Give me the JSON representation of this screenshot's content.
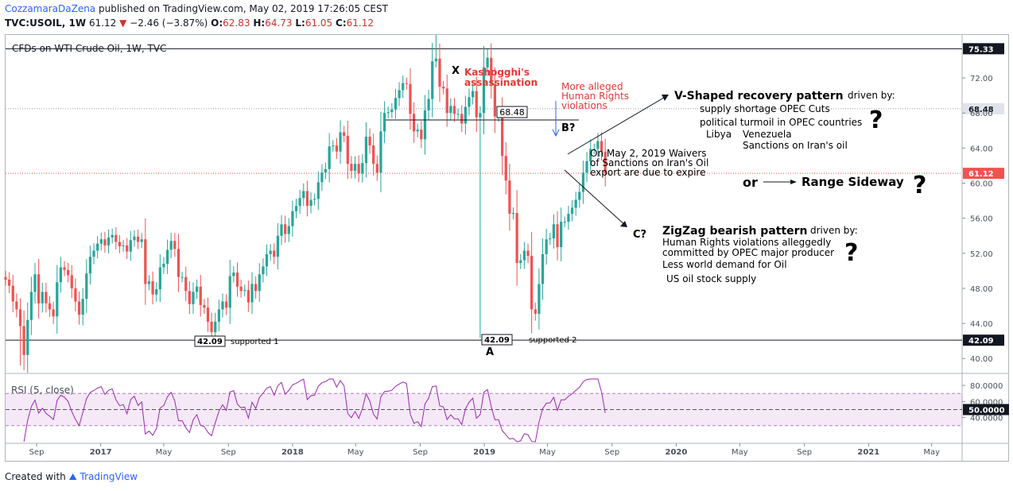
{
  "header": {
    "author": "CozzamaraDaZena",
    "published": "published on TradingView.com, May 02, 2019 17:26:05 CEST",
    "symbol": "TVC:USOIL, 1W",
    "last": "61.12",
    "change": "−2.46 (−3.87%)",
    "o_label": "O:",
    "o": "62.83",
    "h_label": "H:",
    "h": "64.73",
    "l_label": "L:",
    "l": "61.05",
    "c_label": "C:",
    "c": "61.12"
  },
  "footer": {
    "created_with": "Created with",
    "brand": "TradingView"
  },
  "colors": {
    "up": "#26a69a",
    "down": "#ef5350",
    "rsi": "#9c27b0",
    "accent": "#2962ff",
    "annotation_red": "#e53935"
  },
  "chart_data": {
    "type": "candlestick",
    "title": "CFDs on WTI Crude Oil, 1W, TVC",
    "y_ticks": [
      "72.00",
      "68.00",
      "64.00",
      "60.00",
      "56.00",
      "52.00",
      "48.00",
      "44.00",
      "40.00"
    ],
    "y_tick_values": [
      72,
      68,
      64,
      60,
      56,
      52,
      48,
      44,
      40
    ],
    "ylim": [
      38.3,
      76.9
    ],
    "x_ticks": [
      "Sep",
      "2017",
      "May",
      "Sep",
      "2018",
      "May",
      "Sep",
      "2019",
      "May",
      "Sep",
      "2020",
      "May",
      "Sep",
      "2021",
      "May"
    ],
    "x_bold": [
      "2017",
      "2018",
      "2019",
      "2020",
      "2021"
    ],
    "x_range": [
      "2016-07-04",
      "2021-06-28"
    ],
    "first_week": "2016-07-04",
    "weekly_close": [
      49.0,
      48.3,
      46.5,
      45.6,
      43.7,
      40.4,
      44.4,
      47.6,
      49.6,
      46.3,
      47.6,
      46.3,
      45.6,
      44.8,
      48.7,
      50.4,
      50.1,
      49.5,
      48.0,
      46.5,
      45.0,
      46.8,
      49.7,
      51.6,
      52.3,
      53.1,
      53.6,
      52.9,
      53.8,
      54.1,
      53.3,
      52.8,
      52.9,
      52.2,
      53.5,
      53.9,
      53.3,
      53.6,
      48.5,
      48.8,
      47.3,
      47.9,
      50.4,
      50.8,
      52.4,
      53.4,
      52.5,
      49.3,
      49.3,
      47.7,
      46.2,
      47.6,
      48.2,
      46.1,
      45.8,
      44.2,
      43.0,
      44.2,
      45.6,
      46.5,
      45.8,
      49.4,
      49.8,
      48.2,
      47.7,
      47.8,
      46.4,
      48.5,
      47.7,
      49.6,
      50.5,
      51.9,
      52.3,
      51.6,
      54.0,
      55.3,
      54.2,
      55.1,
      56.8,
      57.4,
      58.3,
      59.1,
      57.4,
      58.1,
      58.2,
      60.1,
      61.2,
      61.6,
      64.2,
      64.3,
      63.6,
      65.8,
      65.4,
      62.2,
      61.4,
      62.2,
      61.1,
      62.3,
      65.3,
      64.3,
      62.2,
      61.2,
      65.9,
      68.0,
      68.1,
      68.4,
      69.7,
      70.6,
      71.4,
      71.3,
      67.9,
      65.9,
      66.1,
      65.0,
      68.3,
      69.6,
      73.9,
      74.2,
      71.0,
      70.8,
      68.0,
      68.8,
      67.9,
      67.9,
      66.8,
      68.7,
      69.8,
      70.5,
      67.5,
      68.0,
      73.2,
      74.3,
      71.3,
      67.6,
      67.6,
      63.1,
      60.3,
      56.5,
      56.6,
      50.9,
      51.2,
      52.3,
      51.7,
      45.6,
      45.1,
      48.5,
      51.9,
      53.6,
      53.7,
      55.3,
      52.7,
      55.6,
      55.6,
      56.5,
      57.2,
      58.1,
      59.0,
      61.2,
      62.5,
      63.9,
      63.9,
      64.8,
      63.6,
      61.1
    ],
    "highs": [
      {
        "date": "2018-10-01",
        "value": 76.9
      }
    ],
    "lows": [
      {
        "date": "2018-12-24",
        "value": 42.36
      },
      {
        "date": "2016-08-01",
        "value": 39.2
      }
    ],
    "rsi": {
      "label": "RSI (5, close)",
      "period": 5,
      "ticks": [
        "80.0000",
        "60.0000",
        "40.0000"
      ],
      "tick_values": [
        80,
        60,
        40
      ],
      "last_label": "50.0000",
      "upper": 70,
      "lower": 30,
      "mid": 50,
      "ylim": [
        10,
        88
      ]
    },
    "levels": [
      {
        "label": "75.33",
        "value": 75.33,
        "style": "solid-dark"
      },
      {
        "label": "68.48",
        "value": 68.48,
        "style": "dotted-grey"
      },
      {
        "label": "61.12",
        "value": 61.12,
        "style": "dotted-red"
      },
      {
        "label": "42.09",
        "value": 42.09,
        "style": "solid-dark"
      }
    ],
    "annotations": {
      "x_label": "X",
      "kashogghi_line1": "Kashogghi's",
      "kashogghi_line2": "assassination",
      "hr_line1": "More alleged",
      "hr_line2": "Human Rights",
      "hr_line3": "violations",
      "b_label": "B?",
      "level_6848": "68.48",
      "vshape_title": "V-Shaped recovery pattern",
      "vshape_driven": "driven by:",
      "vshape_1": "supply shortage OPEC Cuts",
      "vshape_2": "political turmoil in OPEC countries",
      "vshape_3a": "Libya",
      "vshape_3b": "Venezuela",
      "vshape_4": "Sanctions on Iran's oil",
      "waiver_1": "On May 2, 2019 Waivers",
      "waiver_2": "of Sanctions on Iran's Oil",
      "waiver_3": "export are due to expire",
      "or_label": "or",
      "range_label": "Range Sideway",
      "c_label": "C?",
      "zz_title": "ZigZag bearish pattern",
      "zz_driven": "driven by:",
      "zz_1": "Human Rights violations alleggedly",
      "zz_2": "committed by OPEC major producer",
      "zz_3": "Less world demand for Oil",
      "zz_4": "US oil stock supply",
      "qmark": "?",
      "sup1_value": "42.09",
      "sup1_text": "supported 1",
      "sup2_value": "42.09",
      "sup2_text": "supported 2",
      "a_label": "A"
    }
  }
}
